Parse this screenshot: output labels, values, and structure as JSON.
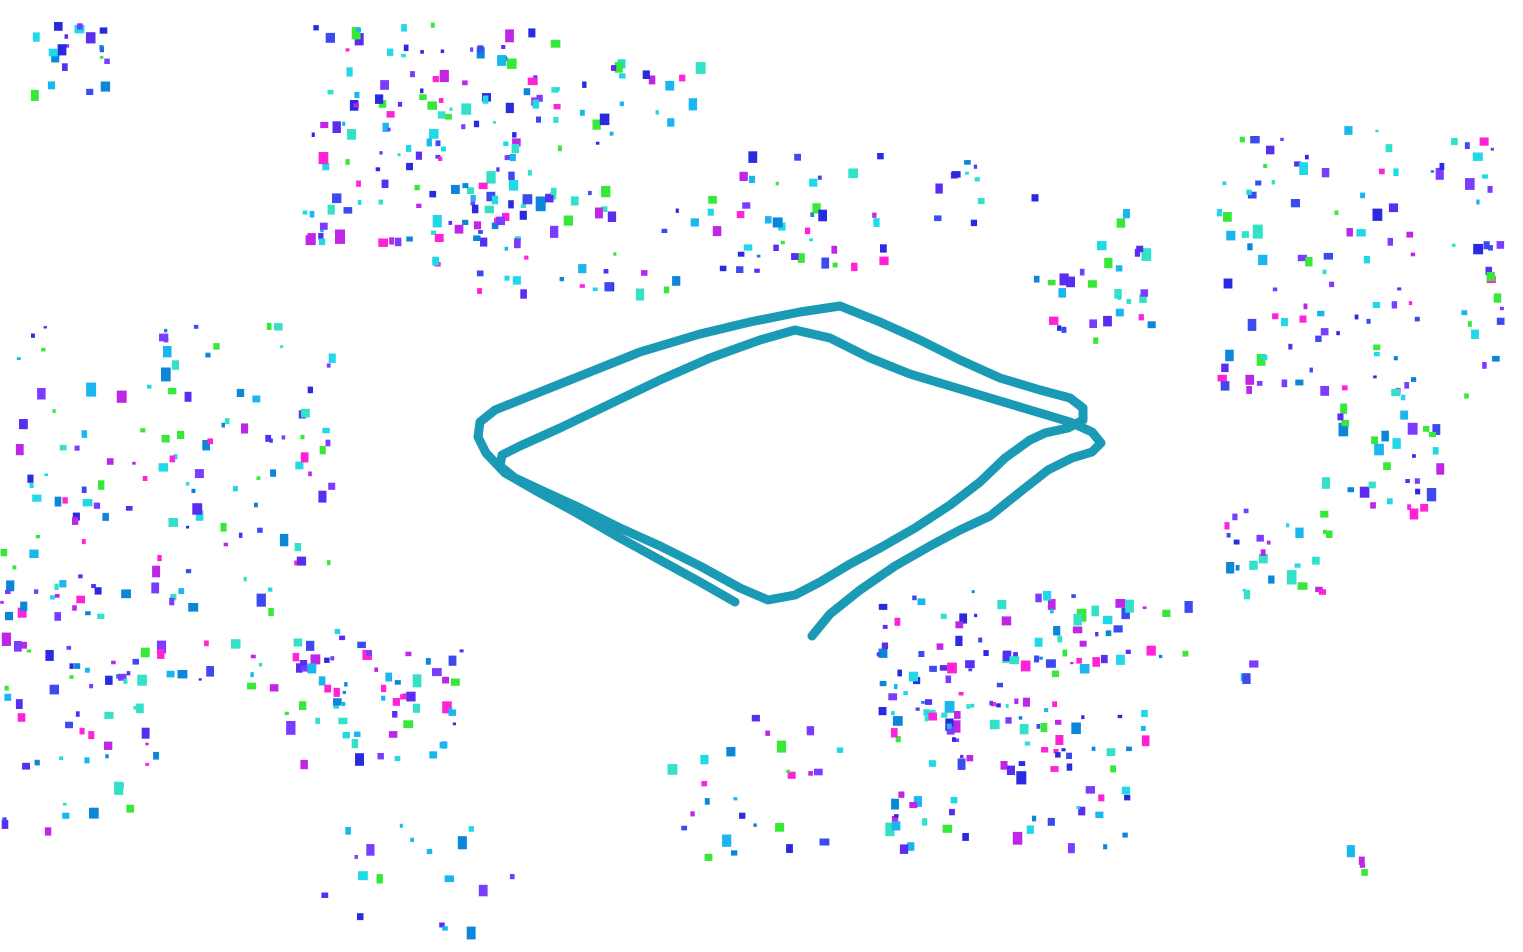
{
  "scene": {
    "background_color": "#ffffff",
    "trajectory_color": "#1a9ab5",
    "point_palette": [
      "#2a2ae0",
      "#3b4bf0",
      "#5a2ef0",
      "#1fd8e8",
      "#19b6f0",
      "#33e0c8",
      "#c026e6",
      "#ff22d6",
      "#38e838",
      "#0c86d8",
      "#7a3cff"
    ]
  }
}
